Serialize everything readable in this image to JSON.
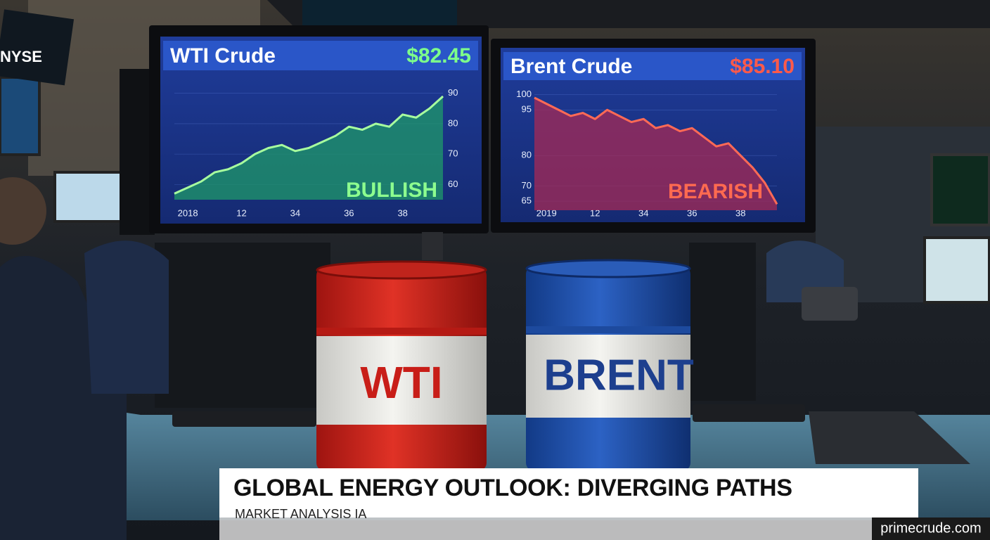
{
  "chart_data": [
    {
      "type": "line",
      "title": "WTI Crude",
      "price": "$82.45",
      "annotation": "BULLISH",
      "categories": [
        null,
        "2018",
        null,
        null,
        null,
        "12",
        null,
        null,
        null,
        "34",
        null,
        null,
        null,
        "36",
        null,
        null,
        null,
        "38",
        null,
        null,
        null
      ],
      "values": [
        57,
        59,
        61,
        64,
        65,
        67,
        70,
        72,
        73,
        71,
        72,
        74,
        76,
        79,
        78,
        80,
        79,
        83,
        82,
        85,
        89
      ],
      "color": "#a8ff9e",
      "fill_color": "#1f9a6a",
      "price_color": "#7dff8a",
      "annotation_color": "#8dff8f",
      "ylim": [
        55,
        92
      ],
      "yticks": [
        60,
        70,
        80,
        90
      ],
      "grid": true
    },
    {
      "type": "line",
      "title": "Brent Crude",
      "price": "$85.10",
      "annotation": "BEARISH",
      "categories": [
        null,
        "2019",
        null,
        null,
        null,
        "12",
        null,
        null,
        null,
        "34",
        null,
        null,
        null,
        "36",
        null,
        null,
        null,
        "38",
        null,
        null,
        null
      ],
      "values": [
        99,
        97,
        95,
        93,
        94,
        92,
        95,
        93,
        91,
        92,
        89,
        90,
        88,
        89,
        86,
        83,
        84,
        80,
        76,
        71,
        64
      ],
      "color": "#ff6a55",
      "fill_color": "#a52a55",
      "price_color": "#ff5a4a",
      "annotation_color": "#ff6a50",
      "ylim": [
        62,
        102
      ],
      "yticks": [
        100,
        95,
        80,
        70,
        65
      ],
      "grid": true
    }
  ],
  "exchange": "NYSE",
  "barrels": [
    "WTI",
    "BRENT"
  ],
  "headline": "GLOBAL ENERGY OUTLOOK: DIVERGING PATHS",
  "subheadline": "MARKET ANALYSIS IA",
  "site": "primecrude.com"
}
